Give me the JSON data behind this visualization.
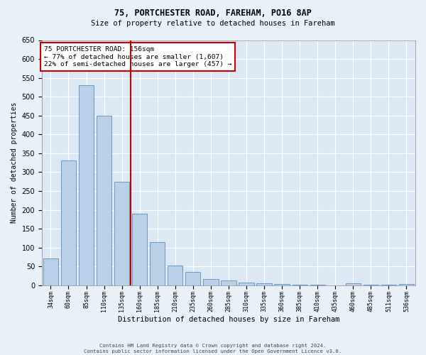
{
  "title1": "75, PORTCHESTER ROAD, FAREHAM, PO16 8AP",
  "title2": "Size of property relative to detached houses in Fareham",
  "xlabel": "Distribution of detached houses by size in Fareham",
  "ylabel": "Number of detached properties",
  "footnote1": "Contains HM Land Registry data © Crown copyright and database right 2024.",
  "footnote2": "Contains public sector information licensed under the Open Government Licence v3.0.",
  "annotation_line1": "75 PORTCHESTER ROAD: 156sqm",
  "annotation_line2": "← 77% of detached houses are smaller (1,607)",
  "annotation_line3": "22% of semi-detached houses are larger (457) →",
  "bar_labels": [
    "34sqm",
    "60sqm",
    "85sqm",
    "110sqm",
    "135sqm",
    "160sqm",
    "185sqm",
    "210sqm",
    "235sqm",
    "260sqm",
    "285sqm",
    "310sqm",
    "335sqm",
    "360sqm",
    "385sqm",
    "410sqm",
    "435sqm",
    "460sqm",
    "485sqm",
    "511sqm",
    "536sqm"
  ],
  "bar_values": [
    72,
    330,
    530,
    450,
    275,
    190,
    115,
    52,
    35,
    17,
    12,
    7,
    5,
    3,
    2,
    1,
    0,
    5,
    1,
    1,
    4
  ],
  "bar_color": "#b8d0e8",
  "bar_edge_color": "#5b8db8",
  "vline_color": "#cc0000",
  "bg_color": "#e8f0f8",
  "plot_bg_color": "#dce8f4",
  "grid_color": "#ffffff",
  "annotation_box_edge": "#cc0000",
  "annotation_box_face": "#ffffff",
  "ylim": [
    0,
    650
  ],
  "yticks": [
    0,
    50,
    100,
    150,
    200,
    250,
    300,
    350,
    400,
    450,
    500,
    550,
    600,
    650
  ]
}
